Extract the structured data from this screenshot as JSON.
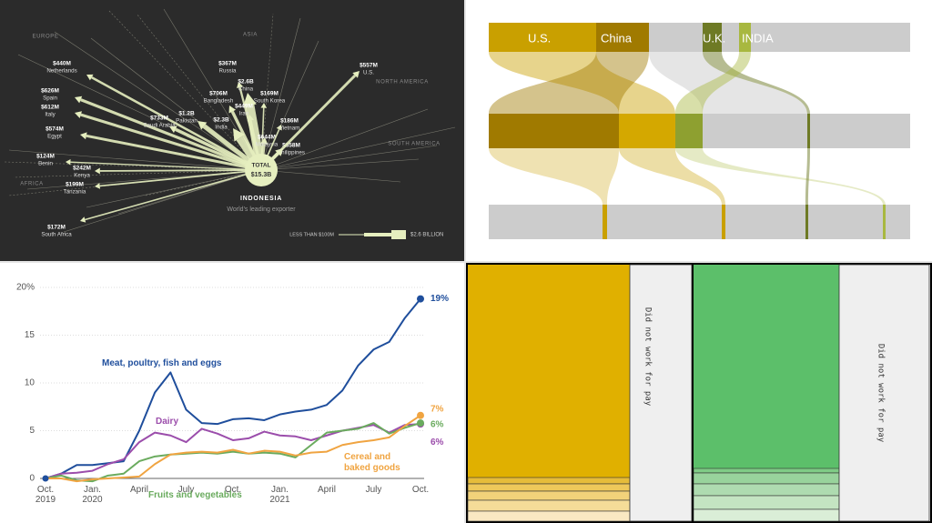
{
  "chart_data": [
    {
      "type": "flow-map",
      "regions": [
        "EUROPE",
        "ASIA",
        "NORTH AMERICA",
        "SOUTH AMERICA",
        "AFRICA"
      ],
      "categories": [
        "Netherlands",
        "Spain",
        "Italy",
        "Egypt",
        "Benin",
        "Kenya",
        "Tanzania",
        "South Africa",
        "Russia",
        "China",
        "Bangladesh",
        "Pakistan",
        "India",
        "Saudi Arabia",
        "South Korea",
        "Iran",
        "Malaysia",
        "Vietnam",
        "Philippines",
        "U.S."
      ],
      "values": [
        440,
        626,
        612,
        574,
        124,
        242,
        199,
        172,
        367,
        2600,
        706,
        1200,
        2300,
        733,
        169,
        449,
        644,
        186,
        858,
        557
      ],
      "value_labels": [
        "$440M",
        "$626M",
        "$612M",
        "$574M",
        "$124M",
        "$242M",
        "$199M",
        "$172M",
        "$367M",
        "$2.6B",
        "$706M",
        "$1.2B",
        "$2.3B",
        "$733M",
        "$169M",
        "$449M",
        "$644M",
        "$186M",
        "$858M",
        "$557M"
      ],
      "total_title": "TOTAL",
      "total": {
        "value": 15300,
        "label": "$15.3B"
      },
      "origin": "INDONESIA",
      "origin_note": "World's leading exporter",
      "legend": [
        "LESS THAN $100M",
        "$2.6 BILLION"
      ],
      "color": "#e6efbf"
    },
    {
      "type": "alluvial",
      "series": [
        {
          "name": "U.S.",
          "color": "#c9a000"
        },
        {
          "name": "China",
          "color": "#a07a00"
        },
        {
          "name": "U.K.",
          "color": "#6e7a25"
        },
        {
          "name": "INDIA",
          "color": "#a8b840"
        }
      ]
    },
    {
      "type": "line",
      "categories": [
        "Oct.\n2019",
        null,
        null,
        "Jan.\n2020",
        null,
        null,
        "April",
        null,
        null,
        "July",
        null,
        null,
        "Oct.",
        null,
        null,
        "Jan.\n2021",
        null,
        null,
        "April",
        null,
        null,
        "July",
        null,
        null,
        "Oct."
      ],
      "ylim": [
        0,
        20
      ],
      "yticks": [
        0,
        5,
        10,
        15,
        {
          "value": 20,
          "label": "20%"
        }
      ],
      "grid": true,
      "series": [
        {
          "name": "Meat, poultry, fish and eggs",
          "color": "#1f4e9c",
          "values": [
            0,
            0.5,
            1.4,
            1.4,
            1.6,
            1.8,
            5,
            9,
            11.1,
            7.2,
            5.8,
            5.7,
            6.2,
            6.3,
            6.1,
            6.7,
            7.0,
            7.2,
            7.7,
            9.2,
            11.8,
            13.5,
            14.3,
            16.8,
            18.8
          ],
          "value_labels": [
            null,
            null,
            null,
            null,
            null,
            null,
            null,
            null,
            null,
            null,
            null,
            null,
            null,
            null,
            null,
            null,
            null,
            null,
            null,
            null,
            null,
            null,
            null,
            null,
            "19%"
          ]
        },
        {
          "name": "Dairy",
          "color": "#9b4dab",
          "values": [
            0,
            0.5,
            0.6,
            0.8,
            1.5,
            2.0,
            3.8,
            4.8,
            4.5,
            3.8,
            5.2,
            4.7,
            4.0,
            4.2,
            4.9,
            4.5,
            4.4,
            4.0,
            4.5,
            5.0,
            5.3,
            5.6,
            4.8,
            5.6,
            5.7
          ],
          "value_labels": [
            null,
            null,
            null,
            null,
            null,
            null,
            null,
            null,
            null,
            null,
            null,
            null,
            null,
            null,
            null,
            null,
            null,
            null,
            null,
            null,
            null,
            null,
            null,
            null,
            "6%"
          ]
        },
        {
          "name": "Fruits and vegetables",
          "color": "#6aab5e",
          "values": [
            0,
            0.3,
            -0.2,
            -0.3,
            0.3,
            0.5,
            1.8,
            2.3,
            2.5,
            2.6,
            2.7,
            2.6,
            2.8,
            2.6,
            2.7,
            2.6,
            2.2,
            3.5,
            4.8,
            5.0,
            5.2,
            5.8,
            4.7,
            5.3,
            5.8
          ],
          "value_labels": [
            null,
            null,
            null,
            null,
            null,
            null,
            null,
            null,
            null,
            null,
            null,
            null,
            null,
            null,
            null,
            null,
            null,
            null,
            null,
            null,
            null,
            null,
            null,
            null,
            "6%"
          ]
        },
        {
          "name": "Cereal and\nbaked goods",
          "color": "#f0a441",
          "values": [
            0,
            0,
            -0.3,
            -0.1,
            0,
            0.1,
            0.2,
            1.5,
            2.5,
            2.7,
            2.8,
            2.7,
            3.0,
            2.6,
            2.9,
            2.8,
            2.4,
            2.7,
            2.8,
            3.5,
            3.8,
            4.0,
            4.3,
            5.5,
            6.6
          ],
          "value_labels": [
            null,
            null,
            null,
            null,
            null,
            null,
            null,
            null,
            null,
            null,
            null,
            null,
            null,
            null,
            null,
            null,
            null,
            null,
            null,
            null,
            null,
            null,
            null,
            null,
            "7%"
          ]
        }
      ]
    },
    {
      "type": "mosaic",
      "labels": [
        "Did not work for pay",
        "Did not work for pay"
      ]
    }
  ]
}
